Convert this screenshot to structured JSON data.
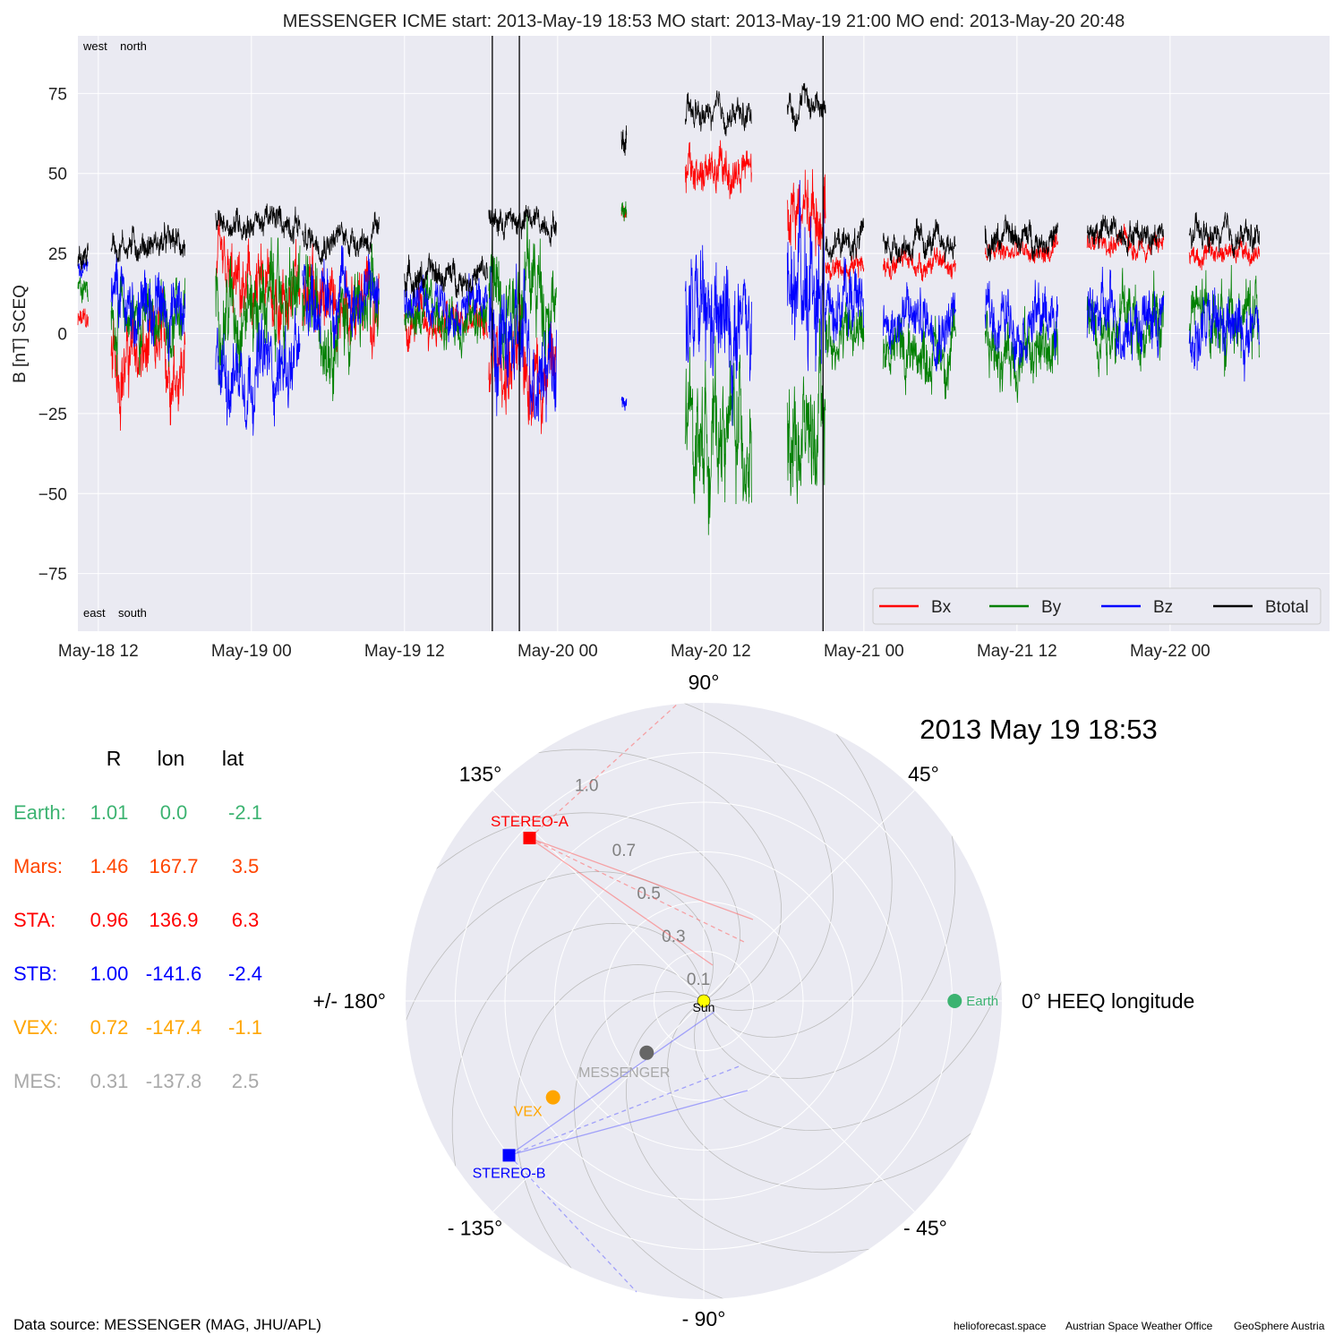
{
  "figure_title": "MESSENGER    ICME start: 2013-May-19 18:53   MO start: 2013-May-19 21:00   MO end: 2013-May-20 20:48",
  "footer": {
    "data_source": "Data source: MESSENGER (MAG, JHU/APL)",
    "credits": [
      "helioforecast.space",
      "Austrian Space Weather Office",
      "GeoSphere Austria"
    ]
  },
  "chart_data": [
    {
      "type": "line",
      "title": "MESSENGER    ICME start: 2013-May-19 18:53   MO start: 2013-May-19 21:00   MO end: 2013-May-20 20:48",
      "ylabel": "B [nT] SCEQ",
      "xlabel": "",
      "x_unit": "hours since 2013-05-18 00:00",
      "xlim": [
        10.4,
        108.5
      ],
      "ylim": [
        -93,
        93
      ],
      "grid": true,
      "x_ticks": [
        {
          "x": 12,
          "label": "May-18 12"
        },
        {
          "x": 24,
          "label": "May-19 00"
        },
        {
          "x": 36,
          "label": "May-19 12"
        },
        {
          "x": 48,
          "label": "May-20 00"
        },
        {
          "x": 60,
          "label": "May-20 12"
        },
        {
          "x": 72,
          "label": "May-21 00"
        },
        {
          "x": 84,
          "label": "May-21 12"
        },
        {
          "x": 96,
          "label": "May-22 00"
        }
      ],
      "y_ticks": [
        -75,
        -50,
        -25,
        0,
        25,
        50,
        75
      ],
      "corner_labels": {
        "top": "west    north",
        "bottom": "east    south"
      },
      "event_lines": [
        {
          "x": 42.88,
          "label": "ICME start"
        },
        {
          "x": 45.0,
          "label": "MO start"
        },
        {
          "x": 68.8,
          "label": "MO end"
        }
      ],
      "legend": {
        "location": "bottom-right",
        "entries": [
          "Bx",
          "By",
          "Bz",
          "Btotal"
        ]
      },
      "segments": [
        {
          "t0": 10.4,
          "t1": 11.2,
          "bx": 3,
          "by": 15,
          "bz": 20,
          "bt": 24,
          "sx": 6,
          "sy": 6,
          "sz": 5
        },
        {
          "t0": 13.0,
          "t1": 18.8,
          "bx": -8,
          "by": 5,
          "bz": 8,
          "bt": 28,
          "sx": 16,
          "sy": 13,
          "sz": 14
        },
        {
          "t0": 21.2,
          "t1": 27.8,
          "bx": 12,
          "by": 10,
          "bz": -10,
          "bt": 35,
          "sx": 15,
          "sy": 18,
          "sz": 16
        },
        {
          "t0": 28.0,
          "t1": 34.0,
          "bx": 10,
          "by": 5,
          "bz": 12,
          "bt": 30,
          "sx": 16,
          "sy": 17,
          "sz": 14
        },
        {
          "t0": 36.0,
          "t1": 42.5,
          "bx": 3,
          "by": 5,
          "bz": 10,
          "bt": 18,
          "sx": 9,
          "sy": 10,
          "sz": 9
        },
        {
          "t0": 42.6,
          "t1": 47.9,
          "bx": -10,
          "by": 15,
          "bz": -5,
          "bt": 35,
          "sx": 18,
          "sy": 20,
          "sz": 22
        },
        {
          "t0": 53.0,
          "t1": 53.4,
          "bx": 38,
          "by": 40,
          "bz": -22,
          "bt": 62,
          "sx": 3,
          "sy": 4,
          "sz": 4
        },
        {
          "t0": 58.0,
          "t1": 63.2,
          "bx": 50,
          "by": -30,
          "bz": 0,
          "bt": 68,
          "sx": 10,
          "sy": 25,
          "sz": 25
        },
        {
          "t0": 66.0,
          "t1": 69.0,
          "bx": 40,
          "by": -30,
          "bz": 20,
          "bt": 72,
          "sx": 15,
          "sy": 25,
          "sz": 30
        },
        {
          "t0": 69.0,
          "t1": 72.0,
          "bx": 20,
          "by": 0,
          "bz": 10,
          "bt": 28,
          "sx": 6,
          "sy": 12,
          "sz": 14
        },
        {
          "t0": 73.5,
          "t1": 79.2,
          "bx": 22,
          "by": -5,
          "bz": 5,
          "bt": 28,
          "sx": 5,
          "sy": 13,
          "sz": 12
        },
        {
          "t0": 81.5,
          "t1": 87.2,
          "bx": 25,
          "by": -5,
          "bz": 5,
          "bt": 30,
          "sx": 5,
          "sy": 13,
          "sz": 12
        },
        {
          "t0": 89.5,
          "t1": 95.5,
          "bx": 28,
          "by": 5,
          "bz": 5,
          "bt": 32,
          "sx": 5,
          "sy": 14,
          "sz": 13
        },
        {
          "t0": 97.5,
          "t1": 103.0,
          "bx": 25,
          "by": 5,
          "bz": 0,
          "bt": 30,
          "sx": 5,
          "sy": 14,
          "sz": 13
        }
      ]
    },
    {
      "type": "scatter",
      "projection": "polar",
      "title": "2013 May 19  18:53",
      "angle_labels": [
        {
          "deg": 90,
          "label": "90°"
        },
        {
          "deg": 45,
          "label": "45°"
        },
        {
          "deg": 0,
          "label": "0° HEEQ longitude"
        },
        {
          "deg": -45,
          "label": "- 45°"
        },
        {
          "deg": -90,
          "label": "- 90°"
        },
        {
          "deg": -135,
          "label": "- 135°"
        },
        {
          "deg": 180,
          "label": "+/- 180°"
        },
        {
          "deg": 135,
          "label": "135°"
        }
      ],
      "radial_ticks": [
        0.1,
        0.3,
        0.5,
        0.7,
        1.0
      ],
      "rlim": [
        0,
        1.2
      ],
      "bodies": [
        {
          "name": "Sun",
          "r": 0.0,
          "lon": 0.0,
          "color": "#ffff00",
          "marker": "circle"
        },
        {
          "name": "Earth",
          "r": 1.01,
          "lon": 0.0,
          "color": "#3cb371",
          "marker": "circle"
        },
        {
          "name": "STEREO-A",
          "r": 0.96,
          "lon": 136.9,
          "color": "#ff0000",
          "marker": "square"
        },
        {
          "name": "STEREO-B",
          "r": 1.0,
          "lon": -141.6,
          "color": "#0000ff",
          "marker": "square"
        },
        {
          "name": "VEX",
          "r": 0.72,
          "lon": -147.4,
          "color": "#ffa500",
          "marker": "circle"
        },
        {
          "name": "MESSENGER",
          "r": 0.31,
          "lon": -137.8,
          "color": "#666666",
          "marker": "circle"
        }
      ]
    }
  ],
  "position_table": {
    "headers": [
      "R",
      "lon",
      "lat"
    ],
    "rows": [
      {
        "name": "Earth:",
        "R": "1.01",
        "lon": "0.0",
        "lat": "-2.1",
        "color": "#3cb371"
      },
      {
        "name": "Mars:",
        "R": "1.46",
        "lon": "167.7",
        "lat": "3.5",
        "color": "#ff4500"
      },
      {
        "name": "STA:",
        "R": "0.96",
        "lon": "136.9",
        "lat": "6.3",
        "color": "#ff0000"
      },
      {
        "name": "STB:",
        "R": "1.00",
        "lon": "-141.6",
        "lat": "-2.4",
        "color": "#0000ff"
      },
      {
        "name": "VEX:",
        "R": "0.72",
        "lon": "-147.4",
        "lat": "-1.1",
        "color": "#ffa500"
      },
      {
        "name": "MES:",
        "R": "0.31",
        "lon": "-137.8",
        "lat": "2.5",
        "color": "#a9a9a9"
      }
    ]
  },
  "colors": {
    "bx": "#ff0000",
    "by": "#008000",
    "bz": "#0000ff",
    "btotal": "#000000",
    "panel_bg": "#eaeaf2",
    "grid": "#ffffff"
  }
}
